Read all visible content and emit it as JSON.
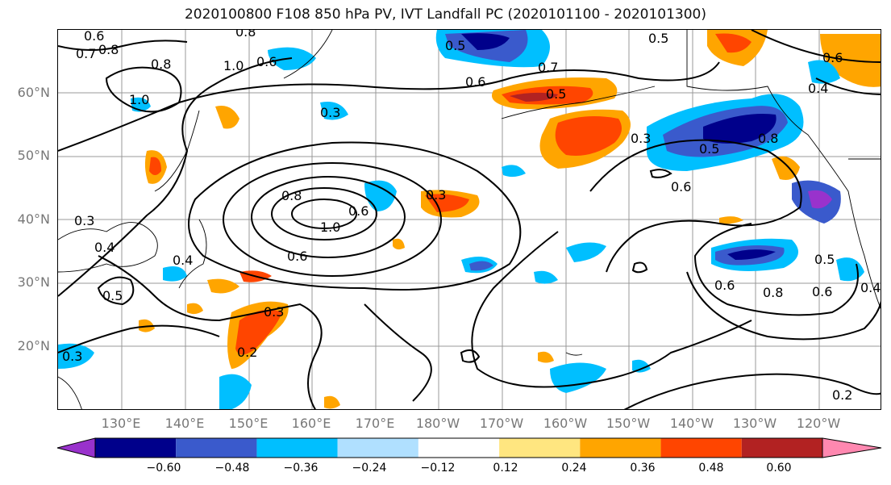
{
  "title": "2020100800 F108 850 hPa PV, IVT Landfall PC (2020101100 - 2020101300)",
  "lat_labels": [
    "60°N",
    "50°N",
    "40°N",
    "30°N",
    "20°N"
  ],
  "lon_labels": [
    "130°E",
    "140°E",
    "150°E",
    "160°E",
    "170°E",
    "180°W",
    "170°W",
    "160°W",
    "150°W",
    "140°W",
    "130°W",
    "120°W"
  ],
  "colorbar": {
    "colors": [
      "#9932cc",
      "#00008b",
      "#3a5acc",
      "#00bfff",
      "#b0e0ff",
      "#ffffff",
      "#ffe680",
      "#ffa500",
      "#ff4500",
      "#b22222",
      "#ff88b0"
    ],
    "tick_labels": [
      "−0.60",
      "−0.48",
      "−0.36",
      "−0.24",
      "−0.12",
      "0.12",
      "0.24",
      "0.36",
      "0.48",
      "0.60"
    ]
  },
  "contour_labels": [
    "0.6",
    "0.8",
    "0.7",
    "0.8",
    "0.6",
    "0.5",
    "0.6",
    "0.5",
    "0.5",
    "0.4",
    "0.6",
    "1.0",
    "0.3",
    "0.3",
    "0.8",
    "1.0",
    "0.6",
    "0.4",
    "0.5",
    "0.3",
    "0.4",
    "0.3",
    "0.2",
    "0.8",
    "0.6",
    "0.5",
    "0.3",
    "0.8",
    "0.6",
    "0.5",
    "0.4",
    "0.2",
    "0.6",
    "0.3",
    "1.0",
    "0.6",
    "0.7",
    "0.8"
  ]
}
